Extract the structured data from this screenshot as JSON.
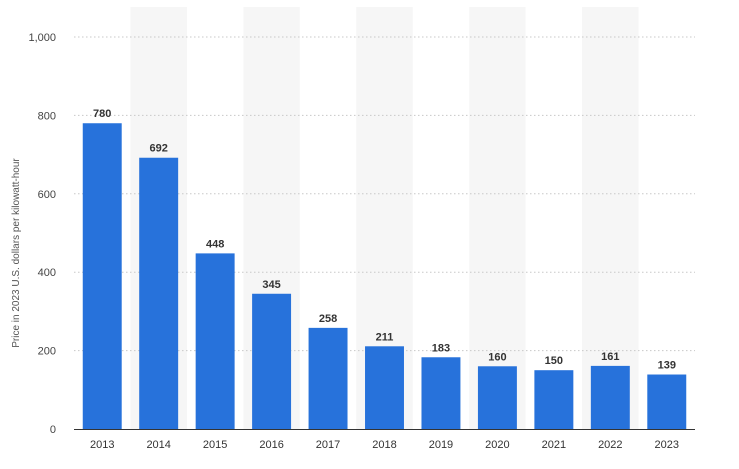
{
  "chart_data": {
    "type": "bar",
    "categories": [
      "2013",
      "2014",
      "2015",
      "2016",
      "2017",
      "2018",
      "2019",
      "2020",
      "2021",
      "2022",
      "2023"
    ],
    "values": [
      780,
      692,
      448,
      345,
      258,
      211,
      183,
      160,
      150,
      161,
      139
    ],
    "data_labels": [
      "780",
      "692",
      "448",
      "345",
      "258",
      "211",
      "183",
      "160",
      "150",
      "161",
      "139"
    ],
    "title": "",
    "xlabel": "",
    "ylabel": "Price in 2023 U.S. dollars per kilowatt-hour",
    "ylim": [
      0,
      1000
    ],
    "yticks": [
      0,
      200,
      400,
      600,
      800,
      1000
    ],
    "ytick_labels": [
      "0",
      "200",
      "400",
      "600",
      "800",
      "1,000"
    ],
    "grid": true,
    "legend": "none",
    "colors": {
      "bar": "#2772db",
      "band": "#f6f6f6",
      "grid": "#c8c8c8"
    }
  }
}
